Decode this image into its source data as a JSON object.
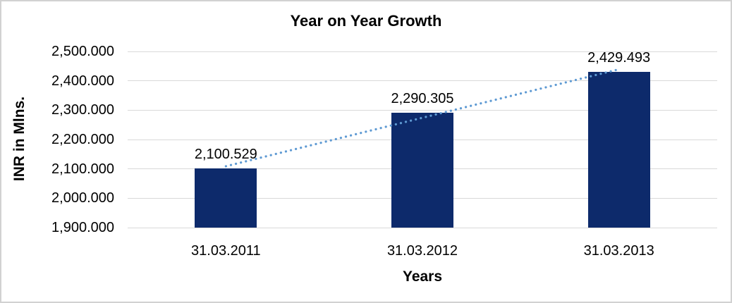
{
  "chart_data": {
    "type": "bar",
    "title": "Year on Year Growth",
    "xlabel": "Years",
    "ylabel": "INR in Mlns.",
    "categories": [
      "31.03.2011",
      "31.03.2012",
      "31.03.2013"
    ],
    "values": [
      2100.529,
      2290.305,
      2429.493
    ],
    "data_labels": [
      "2,100.529",
      "2,290.305",
      "2,429.493"
    ],
    "series": [
      {
        "name": "INR in Mlns.",
        "values": [
          2100.529,
          2290.305,
          2429.493
        ]
      }
    ],
    "y_ticks": [
      {
        "value": 1900,
        "label": "1,900.000"
      },
      {
        "value": 2000,
        "label": "2,000.000"
      },
      {
        "value": 2100,
        "label": "2,100.000"
      },
      {
        "value": 2200,
        "label": "2,200.000"
      },
      {
        "value": 2300,
        "label": "2,300.000"
      },
      {
        "value": 2400,
        "label": "2,400.000"
      },
      {
        "value": 2500,
        "label": "2,500.000"
      }
    ],
    "ylim": [
      1900,
      2500
    ],
    "grid": true,
    "legend": "none",
    "trendline": {
      "type": "linear",
      "style": "dotted"
    },
    "colors": {
      "bar": "#0D2A6B",
      "trendline": "#5E9AD3",
      "gridline": "#D9D9D9",
      "text": "#000000",
      "border": "#D1D1D1",
      "background": "#FFFFFF"
    }
  }
}
